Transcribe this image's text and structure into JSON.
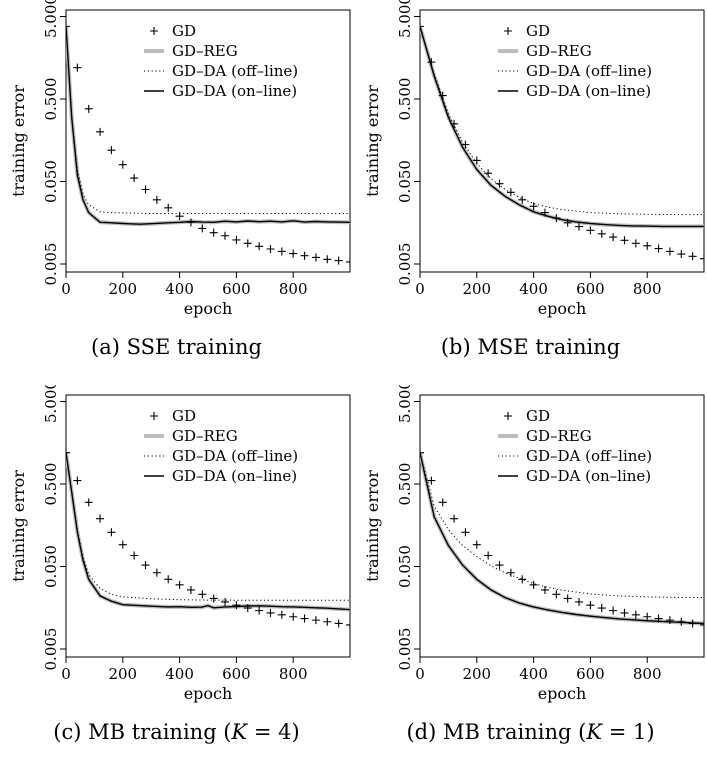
{
  "chart_data": [
    {
      "type": "line",
      "caption": "(a) SSE training",
      "xlabel": "epoch",
      "ylabel": "training error",
      "xlim": [
        0,
        1000
      ],
      "ylim": [
        0.004,
        6.0
      ],
      "yscale": "log",
      "xticks": [
        0,
        200,
        400,
        600,
        800
      ],
      "xtick_labels": [
        "0",
        "200",
        "400",
        "600",
        "800"
      ],
      "yticks": [
        0.005,
        0.05,
        0.5,
        5.0
      ],
      "ytick_labels": [
        "0.005",
        "0.050",
        "0.500",
        "5.000"
      ],
      "grid": false,
      "legend": "top-right",
      "series": [
        {
          "name": "GD",
          "style": "plus",
          "x": [
            0,
            40,
            80,
            120,
            160,
            200,
            240,
            280,
            320,
            360,
            400,
            440,
            480,
            520,
            560,
            600,
            640,
            680,
            720,
            760,
            800,
            840,
            880,
            920,
            960,
            1000
          ],
          "y": [
            3.8,
            1.2,
            0.38,
            0.2,
            0.12,
            0.08,
            0.055,
            0.04,
            0.03,
            0.024,
            0.019,
            0.016,
            0.0135,
            0.012,
            0.011,
            0.0098,
            0.0089,
            0.0082,
            0.0076,
            0.0071,
            0.0067,
            0.0063,
            0.006,
            0.0057,
            0.0055,
            0.0053
          ]
        },
        {
          "name": "GD–REG",
          "style": "gray",
          "x": [
            0,
            20,
            40,
            60,
            80,
            120,
            160,
            200,
            260,
            300,
            360,
            400,
            440,
            480,
            520,
            560,
            600,
            640,
            680,
            720,
            760,
            800,
            840,
            880,
            920,
            960,
            1000
          ],
          "y": [
            3.8,
            0.3,
            0.06,
            0.03,
            0.021,
            0.016,
            0.0158,
            0.0155,
            0.0152,
            0.0154,
            0.0158,
            0.016,
            0.0164,
            0.0161,
            0.016,
            0.0165,
            0.0162,
            0.0166,
            0.0163,
            0.0165,
            0.0162,
            0.0167,
            0.0161,
            0.0164,
            0.0162,
            0.0161,
            0.016
          ]
        },
        {
          "name": "GD–DA (off–line)",
          "style": "dotted",
          "x": [
            0,
            20,
            40,
            60,
            80,
            120,
            160,
            200,
            300,
            400,
            500,
            600,
            700,
            800,
            900,
            1000
          ],
          "y": [
            3.8,
            0.3,
            0.07,
            0.035,
            0.026,
            0.0215,
            0.021,
            0.0208,
            0.0205,
            0.0205,
            0.0205,
            0.0205,
            0.0205,
            0.0205,
            0.0205,
            0.0205
          ]
        },
        {
          "name": "GD–DA (on–line)",
          "style": "solid",
          "x": [
            0,
            20,
            40,
            60,
            80,
            120,
            160,
            200,
            260,
            300,
            360,
            400,
            440,
            480,
            520,
            560,
            600,
            640,
            680,
            720,
            760,
            800,
            840,
            880,
            920,
            960,
            1000
          ],
          "y": [
            3.8,
            0.3,
            0.06,
            0.03,
            0.021,
            0.016,
            0.0158,
            0.0155,
            0.0152,
            0.0154,
            0.0158,
            0.016,
            0.0164,
            0.0161,
            0.016,
            0.0165,
            0.0162,
            0.0166,
            0.0163,
            0.0165,
            0.0162,
            0.0167,
            0.0161,
            0.0164,
            0.0162,
            0.0161,
            0.016
          ]
        }
      ]
    },
    {
      "type": "line",
      "caption": "(b) MSE training",
      "xlabel": "epoch",
      "ylabel": "training error",
      "xlim": [
        0,
        1000
      ],
      "ylim": [
        0.004,
        6.0
      ],
      "yscale": "log",
      "xticks": [
        0,
        200,
        400,
        600,
        800
      ],
      "xtick_labels": [
        "0",
        "200",
        "400",
        "600",
        "800"
      ],
      "yticks": [
        0.005,
        0.05,
        0.5,
        5.0
      ],
      "ytick_labels": [
        "0.005",
        "0.050",
        "0.500",
        "5.000"
      ],
      "grid": false,
      "legend": "top-right",
      "series": [
        {
          "name": "GD",
          "style": "plus",
          "x": [
            0,
            40,
            80,
            120,
            160,
            200,
            240,
            280,
            320,
            360,
            400,
            440,
            480,
            520,
            560,
            600,
            640,
            680,
            720,
            760,
            800,
            840,
            880,
            920,
            960,
            1000
          ],
          "y": [
            3.8,
            1.4,
            0.55,
            0.25,
            0.14,
            0.09,
            0.063,
            0.047,
            0.037,
            0.03,
            0.025,
            0.021,
            0.018,
            0.0158,
            0.0142,
            0.0128,
            0.0116,
            0.0106,
            0.0097,
            0.0089,
            0.0083,
            0.0077,
            0.0071,
            0.0066,
            0.0062,
            0.0058
          ]
        },
        {
          "name": "GD–REG",
          "style": "gray",
          "x": [
            0,
            50,
            100,
            150,
            200,
            250,
            300,
            350,
            400,
            450,
            500,
            550,
            600,
            650,
            700,
            750,
            800,
            850,
            900,
            950,
            1000
          ],
          "y": [
            3.8,
            0.95,
            0.3,
            0.13,
            0.07,
            0.045,
            0.033,
            0.026,
            0.0215,
            0.019,
            0.0172,
            0.0162,
            0.0155,
            0.015,
            0.0147,
            0.0145,
            0.0144,
            0.0143,
            0.0143,
            0.0143,
            0.0143
          ]
        },
        {
          "name": "GD–DA (off–line)",
          "style": "dotted",
          "x": [
            0,
            50,
            100,
            150,
            200,
            250,
            300,
            350,
            400,
            450,
            500,
            600,
            700,
            800,
            900,
            1000
          ],
          "y": [
            3.8,
            1.0,
            0.33,
            0.15,
            0.083,
            0.054,
            0.04,
            0.032,
            0.027,
            0.0245,
            0.0228,
            0.021,
            0.0203,
            0.02,
            0.0199,
            0.0198
          ]
        },
        {
          "name": "GD–DA (on–line)",
          "style": "solid",
          "x": [
            0,
            50,
            100,
            150,
            200,
            250,
            300,
            350,
            400,
            450,
            500,
            550,
            600,
            650,
            700,
            750,
            800,
            850,
            900,
            950,
            1000
          ],
          "y": [
            3.8,
            0.95,
            0.3,
            0.13,
            0.07,
            0.045,
            0.033,
            0.026,
            0.0215,
            0.019,
            0.0172,
            0.0162,
            0.0155,
            0.015,
            0.0147,
            0.0145,
            0.0144,
            0.0143,
            0.0143,
            0.0143,
            0.0143
          ]
        }
      ]
    },
    {
      "type": "line",
      "caption": "(c) MB training (K = 4)",
      "caption_parts": {
        "prefix": "(c) MB training (",
        "var": "K",
        "suffix": " = 4)"
      },
      "xlabel": "epoch",
      "ylabel": "training error",
      "xlim": [
        0,
        1000
      ],
      "ylim": [
        0.004,
        6.0
      ],
      "yscale": "log",
      "xticks": [
        0,
        200,
        400,
        600,
        800
      ],
      "xtick_labels": [
        "0",
        "200",
        "400",
        "600",
        "800"
      ],
      "yticks": [
        0.005,
        0.05,
        0.5,
        5.0
      ],
      "ytick_labels": [
        "0.005",
        "0.050",
        "0.500",
        "5.000"
      ],
      "grid": false,
      "legend": "top-right",
      "series": [
        {
          "name": "GD",
          "style": "plus",
          "x": [
            0,
            40,
            80,
            120,
            160,
            200,
            240,
            280,
            320,
            360,
            400,
            440,
            480,
            520,
            560,
            600,
            640,
            680,
            720,
            760,
            800,
            840,
            880,
            920,
            960,
            1000
          ],
          "y": [
            1.2,
            0.55,
            0.3,
            0.19,
            0.13,
            0.092,
            0.068,
            0.052,
            0.042,
            0.035,
            0.03,
            0.026,
            0.023,
            0.0205,
            0.0186,
            0.017,
            0.0157,
            0.0146,
            0.0137,
            0.013,
            0.0123,
            0.0117,
            0.0112,
            0.0107,
            0.0102,
            0.0098
          ]
        },
        {
          "name": "GD–REG",
          "style": "gray",
          "x": [
            0,
            20,
            40,
            60,
            80,
            120,
            160,
            200,
            260,
            300,
            360,
            400,
            440,
            480,
            500,
            520,
            560,
            600,
            640,
            680,
            720,
            760,
            800,
            840,
            880,
            920,
            960,
            1000
          ],
          "y": [
            1.2,
            0.4,
            0.13,
            0.06,
            0.035,
            0.022,
            0.019,
            0.0172,
            0.0168,
            0.0165,
            0.0162,
            0.0163,
            0.016,
            0.0161,
            0.0168,
            0.0158,
            0.0162,
            0.0164,
            0.0166,
            0.0167,
            0.0165,
            0.0163,
            0.0162,
            0.016,
            0.0158,
            0.0156,
            0.0153,
            0.015
          ]
        },
        {
          "name": "GD–DA (off–line)",
          "style": "dotted",
          "x": [
            0,
            20,
            40,
            60,
            80,
            120,
            160,
            200,
            300,
            400,
            500,
            600,
            700,
            800,
            900,
            1000
          ],
          "y": [
            1.2,
            0.4,
            0.14,
            0.065,
            0.04,
            0.027,
            0.023,
            0.0215,
            0.0203,
            0.0198,
            0.0196,
            0.0195,
            0.0195,
            0.0195,
            0.0195,
            0.0195
          ]
        },
        {
          "name": "GD–DA (on–line)",
          "style": "solid",
          "x": [
            0,
            20,
            40,
            60,
            80,
            120,
            160,
            200,
            260,
            300,
            360,
            400,
            440,
            480,
            500,
            520,
            560,
            600,
            640,
            680,
            720,
            760,
            800,
            840,
            880,
            920,
            960,
            1000
          ],
          "y": [
            1.2,
            0.4,
            0.13,
            0.06,
            0.035,
            0.022,
            0.019,
            0.0172,
            0.0168,
            0.0165,
            0.0162,
            0.0163,
            0.016,
            0.0161,
            0.0168,
            0.0158,
            0.0162,
            0.0164,
            0.0166,
            0.0167,
            0.0165,
            0.0163,
            0.0162,
            0.016,
            0.0158,
            0.0156,
            0.0153,
            0.015
          ]
        }
      ]
    },
    {
      "type": "line",
      "caption": "(d) MB training (K = 1)",
      "caption_parts": {
        "prefix": "(d) MB training (",
        "var": "K",
        "suffix": " = 1)"
      },
      "xlabel": "epoch",
      "ylabel": "training error",
      "xlim": [
        0,
        1000
      ],
      "ylim": [
        0.004,
        6.0
      ],
      "yscale": "log",
      "xticks": [
        0,
        200,
        400,
        600,
        800
      ],
      "xtick_labels": [
        "0",
        "200",
        "400",
        "600",
        "800"
      ],
      "yticks": [
        0.005,
        0.05,
        0.5,
        5.0
      ],
      "ytick_labels": [
        "0.005",
        "0.050",
        "0.500",
        "5.000"
      ],
      "grid": false,
      "legend": "top-right",
      "series": [
        {
          "name": "GD",
          "style": "plus",
          "x": [
            0,
            40,
            80,
            120,
            160,
            200,
            240,
            280,
            320,
            360,
            400,
            440,
            480,
            520,
            560,
            600,
            640,
            680,
            720,
            760,
            800,
            840,
            880,
            920,
            960,
            1000
          ],
          "y": [
            1.2,
            0.55,
            0.3,
            0.19,
            0.13,
            0.092,
            0.068,
            0.052,
            0.042,
            0.035,
            0.03,
            0.026,
            0.023,
            0.0205,
            0.0186,
            0.017,
            0.0157,
            0.0146,
            0.0137,
            0.013,
            0.0123,
            0.0117,
            0.0112,
            0.0107,
            0.0102,
            0.0098
          ]
        },
        {
          "name": "GD–REG",
          "style": "gray",
          "x": [
            0,
            50,
            100,
            150,
            200,
            250,
            300,
            350,
            400,
            450,
            500,
            550,
            600,
            650,
            700,
            750,
            800,
            850,
            900,
            950,
            1000
          ],
          "y": [
            1.2,
            0.2,
            0.09,
            0.052,
            0.035,
            0.026,
            0.021,
            0.018,
            0.0162,
            0.0149,
            0.0139,
            0.0131,
            0.0125,
            0.012,
            0.0116,
            0.0113,
            0.011,
            0.0108,
            0.0106,
            0.0104,
            0.0102
          ]
        },
        {
          "name": "GD–DA (off–line)",
          "style": "dotted",
          "x": [
            0,
            50,
            100,
            150,
            200,
            250,
            300,
            350,
            400,
            450,
            500,
            600,
            700,
            800,
            900,
            1000
          ],
          "y": [
            1.2,
            0.27,
            0.14,
            0.09,
            0.066,
            0.051,
            0.042,
            0.036,
            0.031,
            0.028,
            0.0258,
            0.0232,
            0.022,
            0.0214,
            0.0211,
            0.021
          ]
        },
        {
          "name": "GD–DA (on–line)",
          "style": "solid",
          "x": [
            0,
            50,
            100,
            150,
            200,
            250,
            300,
            350,
            400,
            450,
            500,
            550,
            600,
            650,
            700,
            750,
            800,
            850,
            900,
            950,
            1000
          ],
          "y": [
            1.2,
            0.2,
            0.09,
            0.052,
            0.035,
            0.026,
            0.021,
            0.018,
            0.0162,
            0.0149,
            0.0139,
            0.0131,
            0.0125,
            0.012,
            0.0116,
            0.0113,
            0.011,
            0.0108,
            0.0106,
            0.0104,
            0.0102
          ]
        }
      ]
    }
  ]
}
